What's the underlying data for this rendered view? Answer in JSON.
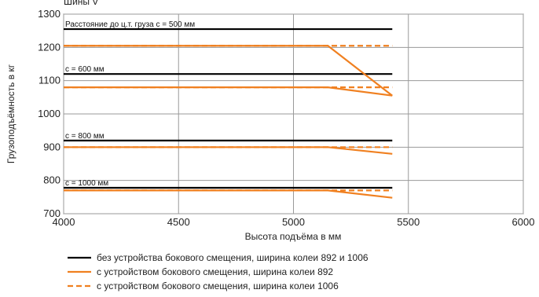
{
  "chart_data": {
    "type": "line",
    "title": "Шины V",
    "xlabel": "Высота подъёма в мм",
    "ylabel": "Грузоподъёмность в кг",
    "xlim": [
      4000,
      6000
    ],
    "ylim": [
      700,
      1300
    ],
    "xticks": [
      "4000",
      "4500",
      "5000",
      "5500",
      "6000"
    ],
    "yticks": [
      "700",
      "800",
      "900",
      "1000",
      "1100",
      "1200",
      "1300"
    ],
    "grid": true,
    "annotations": [
      {
        "text": "Расстояние до ц.т. груза c = 500 мм",
        "x": 4000,
        "y": 1255
      },
      {
        "text": "c = 600 мм",
        "x": 4000,
        "y": 1120
      },
      {
        "text": "c = 800 мм",
        "x": 4000,
        "y": 920
      },
      {
        "text": "c = 1000 мм",
        "x": 4000,
        "y": 778
      }
    ],
    "series": [
      {
        "name": "без устройства бокового смещения, ширина колеи 892 и 1006",
        "color": "#000000",
        "style": "solid",
        "lines": [
          [
            [
              4000,
              1255
            ],
            [
              5430,
              1255
            ]
          ],
          [
            [
              4000,
              1120
            ],
            [
              5430,
              1120
            ]
          ],
          [
            [
              4000,
              920
            ],
            [
              5430,
              920
            ]
          ],
          [
            [
              4000,
              778
            ],
            [
              5430,
              778
            ]
          ]
        ]
      },
      {
        "name": "с устройством бокового смещения, ширина колеи 892",
        "color": "#f08020",
        "style": "solid",
        "lines": [
          [
            [
              4000,
              1205
            ],
            [
              5150,
              1205
            ],
            [
              5430,
              1055
            ]
          ],
          [
            [
              4000,
              1080
            ],
            [
              5150,
              1080
            ],
            [
              5430,
              1055
            ]
          ],
          [
            [
              4000,
              900
            ],
            [
              5150,
              900
            ],
            [
              5430,
              880
            ]
          ],
          [
            [
              4000,
              770
            ],
            [
              5150,
              770
            ],
            [
              5430,
              748
            ]
          ]
        ]
      },
      {
        "name": "с устройством бокового смещения, ширина колеи 1006",
        "color": "#f08020",
        "style": "dashed",
        "lines": [
          [
            [
              4000,
              1205
            ],
            [
              5150,
              1205
            ],
            [
              5430,
              1205
            ]
          ],
          [
            [
              4000,
              1080
            ],
            [
              5150,
              1080
            ],
            [
              5430,
              1080
            ]
          ],
          [
            [
              4000,
              900
            ],
            [
              5150,
              900
            ],
            [
              5430,
              900
            ]
          ],
          [
            [
              4000,
              770
            ],
            [
              5150,
              770
            ],
            [
              5430,
              770
            ]
          ]
        ]
      }
    ],
    "legend_position": "bottom"
  }
}
